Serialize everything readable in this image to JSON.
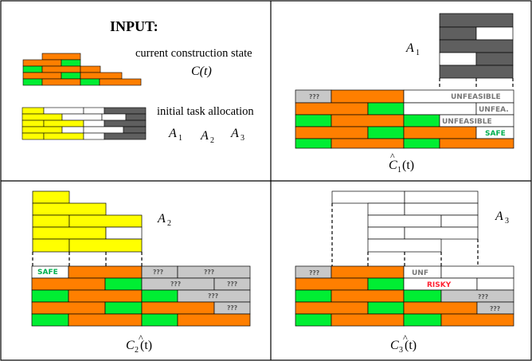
{
  "colors": {
    "orange": "#ff7f00",
    "green": "#00ee33",
    "yellow": "#ffff00",
    "dark_gray": "#5f5f5f",
    "light_gray": "#c8c8c8",
    "white": "#ffffff",
    "safe_text": "#00b050",
    "risky_text": "#ff2233",
    "tag_text": "#777777"
  },
  "input_panel": {
    "heading": "INPUT:",
    "state_label": "current construction state",
    "state_symbol": "C(t)",
    "allocation_label": "initial task allocation",
    "agents": [
      "A",
      "A",
      "A"
    ],
    "agent_subscripts": [
      "1",
      "2",
      "3"
    ]
  },
  "panel_a1": {
    "agent": "A",
    "agent_sub": "1",
    "status": [
      "???",
      "UNFEASIBLE",
      "UNFEA.",
      "UNFEASIBLE",
      "SAFE"
    ],
    "caption_base": "C",
    "caption_sub": "1",
    "caption_arg": "(t)"
  },
  "panel_a2": {
    "agent": "A",
    "agent_sub": "2",
    "status": [
      "SAFE",
      "???",
      "???",
      "???",
      "???",
      "???",
      "???"
    ],
    "caption_base": "C",
    "caption_sub": "2",
    "caption_arg": "(t)"
  },
  "panel_a3": {
    "agent": "A",
    "agent_sub": "3",
    "status": [
      "???",
      "UNF",
      "RISKY",
      "???",
      "???"
    ],
    "caption_base": "C",
    "caption_sub": "3",
    "caption_arg": "(t)"
  }
}
